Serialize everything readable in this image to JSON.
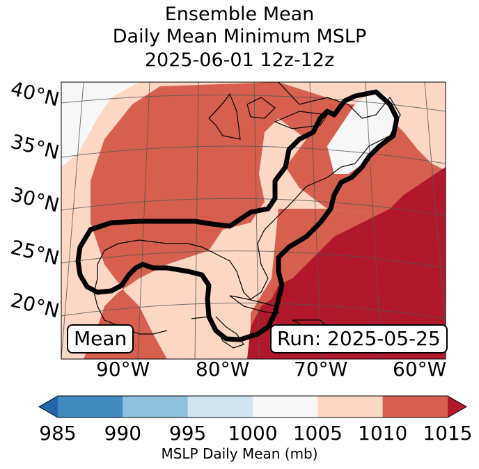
{
  "title": {
    "line1": "Ensemble Mean",
    "line2": "Daily Mean Minimum MSLP",
    "line3": "2025-06-01 12z-12z"
  },
  "map": {
    "lat_labels": [
      "40°N",
      "35°N",
      "30°N",
      "25°N",
      "20°N"
    ],
    "lon_labels": [
      "90°W",
      "80°W",
      "70°W",
      "60°W"
    ],
    "mean_box": "Mean",
    "run_box": "Run: 2025-05-25",
    "fill_colors": {
      "c985_990": "#3e8cc1",
      "c990_995": "#8fc2de",
      "c995_1000": "#d1e5f0",
      "c1000_1005": "#f7f7f7",
      "c1005_1010": "#fcd7c4",
      "c1010_1015": "#d6604d",
      "c1015_plus": "#b2182b"
    }
  },
  "colorbar": {
    "ticks": [
      "985",
      "990",
      "995",
      "1000",
      "1005",
      "1010",
      "1015"
    ],
    "label": "MSLP Daily Mean (mb)",
    "colors": [
      "#3e8cc1",
      "#8fc2de",
      "#d1e5f0",
      "#f7f7f7",
      "#fcd7c4",
      "#d6604d"
    ],
    "extend_low": "#2166ac",
    "extend_high": "#b2182b"
  }
}
